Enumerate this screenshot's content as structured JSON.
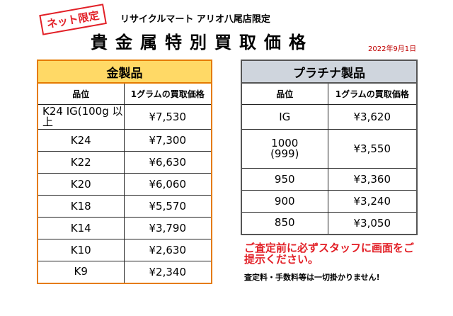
{
  "stamp": "ネット限定",
  "store_name": "リサイクルマート アリオ八尾店限定",
  "title": "貴金属特別買取価格",
  "date": "2022年9月1日",
  "gold": {
    "category": "金製品",
    "columns": [
      "品位",
      "1グラムの買取価格"
    ],
    "rows": [
      {
        "grade": "K24 IG(100g 以上",
        "price": "¥7,530"
      },
      {
        "grade": "K24",
        "price": "¥7,300"
      },
      {
        "grade": "K22",
        "price": "¥6,630"
      },
      {
        "grade": "K20",
        "price": "¥6,060"
      },
      {
        "grade": "K18",
        "price": "¥5,570"
      },
      {
        "grade": "K14",
        "price": "¥3,790"
      },
      {
        "grade": "K10",
        "price": "¥2,630"
      },
      {
        "grade": "K9",
        "price": "¥2,340"
      }
    ]
  },
  "platinum": {
    "category": "プラチナ製品",
    "columns": [
      "品位",
      "1グラムの買取価格"
    ],
    "rows": [
      {
        "grade": "IG",
        "price": "¥3,620"
      },
      {
        "grade": "1000 (999)",
        "price": "¥3,550"
      },
      {
        "grade": "950",
        "price": "¥3,360"
      },
      {
        "grade": "900",
        "price": "¥3,240"
      },
      {
        "grade": "850",
        "price": "¥3,050"
      }
    ]
  },
  "notes": {
    "staff_notice": "ご査定前に必ずスタッフに画面をご提示ください。",
    "fees_notice": "査定料・手数料等は一切掛かりません!"
  }
}
